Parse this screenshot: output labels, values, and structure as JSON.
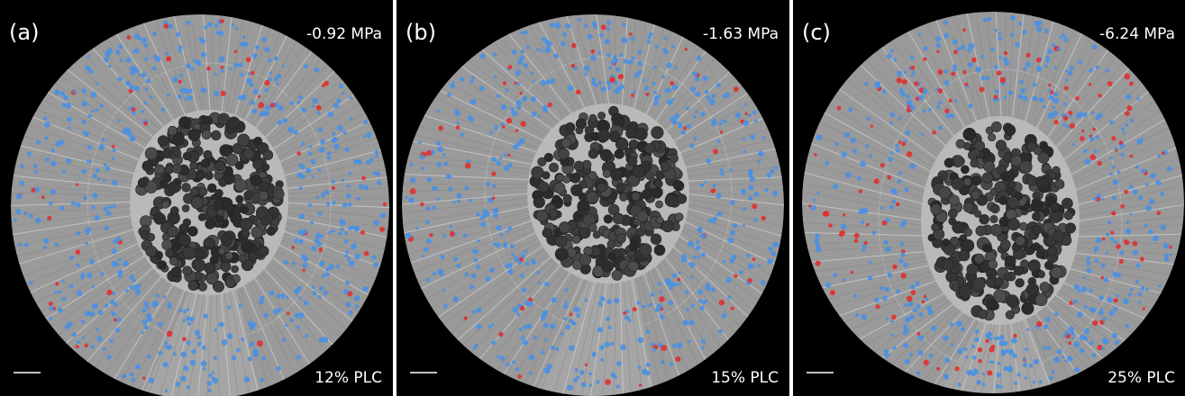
{
  "panels": [
    {
      "letter": "(a)",
      "pressure": "-0.92 MPa",
      "plc": "12% PLC"
    },
    {
      "letter": "(b)",
      "pressure": "-1.63 MPa",
      "plc": "15% PLC"
    },
    {
      "letter": "(c)",
      "pressure": "-6.24 MPa",
      "plc": "25% PLC"
    }
  ],
  "colors": {
    "background": "#000000",
    "wood": "#9a9a9a",
    "pith": "#444444",
    "functional_vessels": "#4a90e2",
    "embolized_vessels": "#e03030"
  }
}
